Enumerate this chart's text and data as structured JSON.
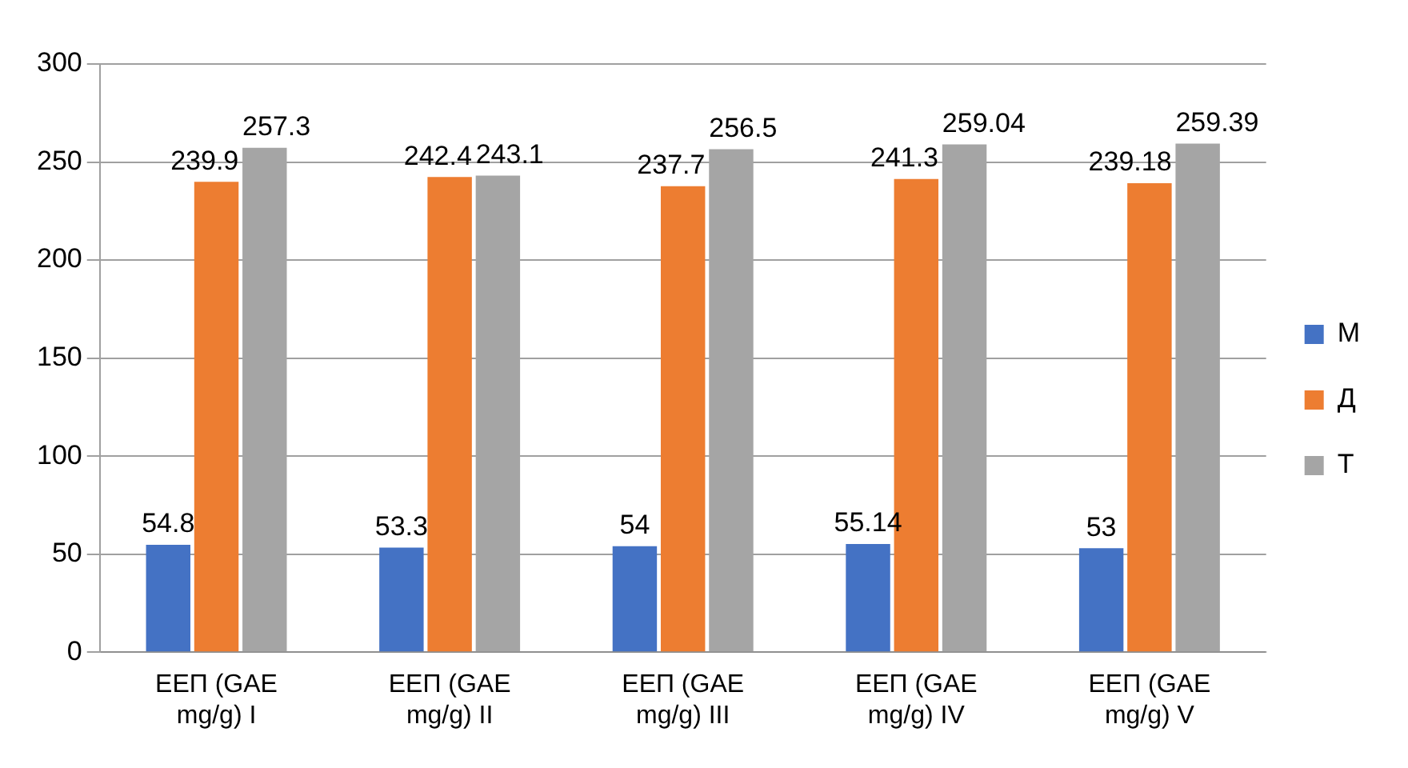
{
  "chart_data": {
    "type": "bar",
    "categories": [
      "ЕЕП (GAE mg/g) I",
      "ЕЕП (GAE mg/g) II",
      "ЕЕП (GAE mg/g) III",
      "ЕЕП (GAE mg/g) IV",
      "ЕЕП (GAE mg/g) V"
    ],
    "series": [
      {
        "name": "М",
        "color": "#4472c4",
        "values": [
          54.8,
          53.3,
          54,
          55.14,
          53
        ]
      },
      {
        "name": "Д",
        "color": "#ed7d31",
        "values": [
          239.9,
          242.4,
          237.7,
          241.3,
          239.18
        ]
      },
      {
        "name": "Т",
        "color": "#a5a5a5",
        "values": [
          257.3,
          243.1,
          256.5,
          259.04,
          259.39
        ]
      }
    ],
    "ylim": [
      0,
      300
    ],
    "yticks": [
      0,
      50,
      100,
      150,
      200,
      250,
      300
    ],
    "grid": "y",
    "legend": "right",
    "data_labels": true
  }
}
